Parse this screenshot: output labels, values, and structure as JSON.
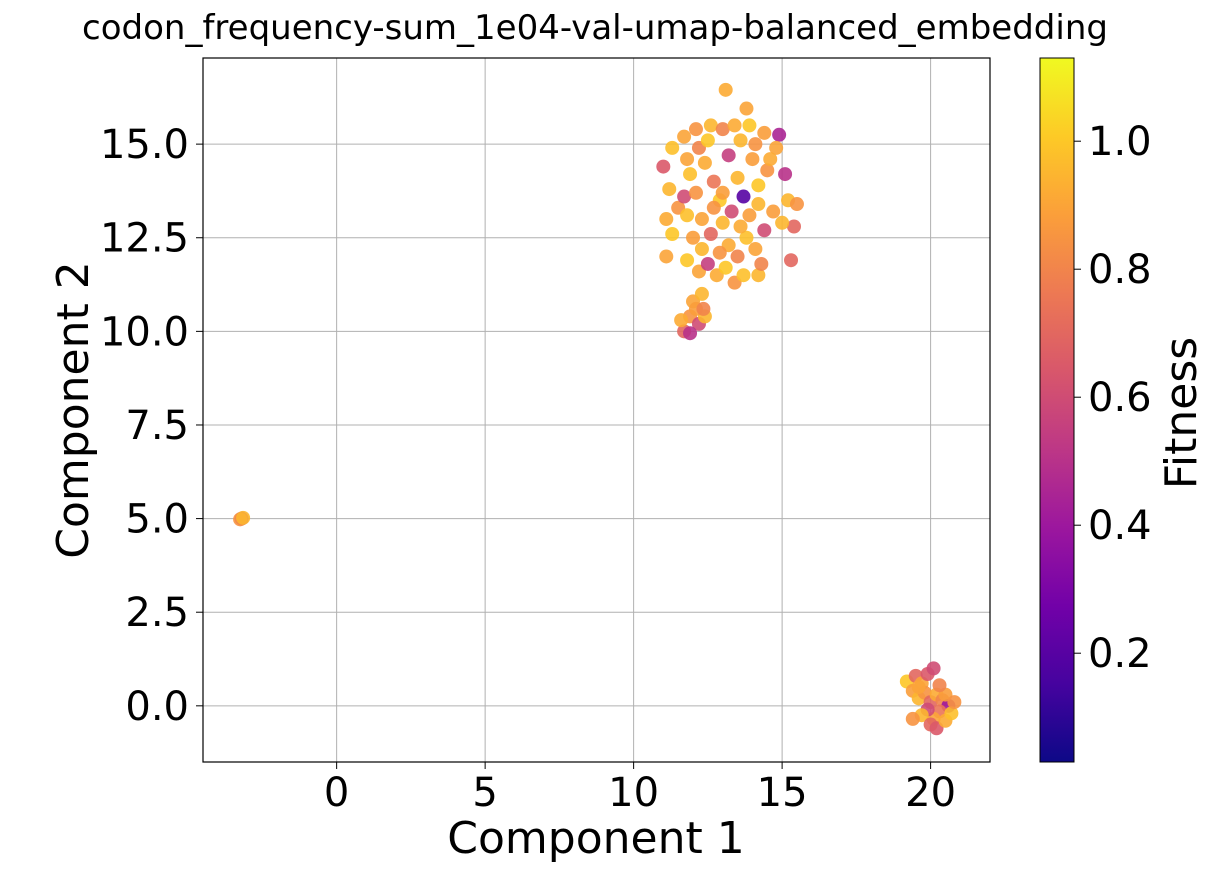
{
  "chart_data": {
    "type": "scatter",
    "title": "codon_frequency-sum_1e04-val-umap-balanced_embedding",
    "xlabel": "Component 1",
    "ylabel": "Component 2",
    "xlim": [
      -4.5,
      22.0
    ],
    "ylim": [
      -1.5,
      17.3
    ],
    "xticks": [
      0,
      5,
      10,
      15,
      20
    ],
    "xtick_labels": [
      "0",
      "5",
      "10",
      "15",
      "20"
    ],
    "yticks": [
      0.0,
      2.5,
      5.0,
      7.5,
      10.0,
      12.5,
      15.0
    ],
    "ytick_labels": [
      "0.0",
      "2.5",
      "5.0",
      "7.5",
      "10.0",
      "12.5",
      "15.0"
    ],
    "grid": true,
    "colorbar": {
      "label": "Fitness",
      "colormap": "plasma",
      "range": [
        0.03,
        1.13
      ],
      "ticks": [
        0.2,
        0.4,
        0.6,
        0.8,
        1.0
      ],
      "tick_labels": [
        "0.2",
        "0.4",
        "0.6",
        "0.8",
        "1.0"
      ]
    },
    "colormap_stops": [
      "#0d0887",
      "#46039f",
      "#7201a8",
      "#9c179e",
      "#bd3786",
      "#d8576b",
      "#ed7953",
      "#fb9f3a",
      "#fdca26",
      "#f0f921"
    ],
    "series": [
      {
        "points": [
          [
            -3.2,
            5.0,
            0.5
          ],
          [
            -3.25,
            4.98,
            0.85
          ],
          [
            -3.15,
            5.02,
            0.95
          ],
          [
            11.0,
            14.4,
            0.65
          ],
          [
            11.3,
            14.9,
            0.98
          ],
          [
            11.7,
            15.2,
            0.9
          ],
          [
            12.1,
            15.4,
            0.85
          ],
          [
            12.6,
            15.5,
            0.95
          ],
          [
            13.0,
            15.4,
            0.8
          ],
          [
            13.4,
            15.5,
            0.92
          ],
          [
            13.9,
            15.5,
            1.0
          ],
          [
            14.4,
            15.3,
            0.88
          ],
          [
            14.9,
            15.25,
            0.45
          ],
          [
            13.1,
            16.45,
            0.92
          ],
          [
            13.8,
            15.95,
            0.9
          ],
          [
            11.2,
            13.8,
            0.95
          ],
          [
            11.5,
            13.3,
            0.85
          ],
          [
            11.1,
            13.0,
            0.92
          ],
          [
            11.3,
            12.6,
            1.0
          ],
          [
            11.1,
            12.0,
            0.9
          ],
          [
            11.7,
            13.6,
            0.6
          ],
          [
            11.9,
            14.2,
            0.98
          ],
          [
            12.1,
            13.7,
            0.85
          ],
          [
            12.4,
            14.5,
            0.92
          ],
          [
            12.7,
            14.0,
            0.75
          ],
          [
            12.9,
            13.5,
            1.0
          ],
          [
            13.2,
            14.7,
            0.55
          ],
          [
            13.5,
            14.1,
            0.95
          ],
          [
            13.7,
            13.6,
            0.2
          ],
          [
            14.0,
            14.6,
            0.88
          ],
          [
            14.2,
            13.9,
            1.0
          ],
          [
            14.5,
            14.3,
            0.85
          ],
          [
            14.8,
            14.9,
            0.9
          ],
          [
            15.1,
            14.2,
            0.5
          ],
          [
            15.2,
            13.5,
            0.95
          ],
          [
            15.5,
            13.4,
            0.85
          ],
          [
            15.4,
            12.8,
            0.7
          ],
          [
            15.0,
            12.9,
            0.95
          ],
          [
            14.7,
            13.2,
            0.88
          ],
          [
            14.4,
            12.7,
            0.6
          ],
          [
            14.1,
            12.2,
            0.9
          ],
          [
            13.8,
            12.5,
            0.98
          ],
          [
            13.5,
            12.0,
            0.8
          ],
          [
            13.2,
            12.3,
            0.92
          ],
          [
            12.9,
            12.1,
            0.85
          ],
          [
            12.6,
            12.6,
            0.7
          ],
          [
            12.3,
            12.2,
            0.95
          ],
          [
            12.0,
            12.5,
            0.88
          ],
          [
            11.8,
            11.9,
            1.0
          ],
          [
            12.2,
            11.6,
            0.9
          ],
          [
            12.5,
            11.8,
            0.55
          ],
          [
            12.8,
            11.5,
            0.92
          ],
          [
            13.1,
            11.7,
            1.0
          ],
          [
            13.4,
            11.3,
            0.85
          ],
          [
            13.7,
            11.5,
            0.98
          ],
          [
            14.2,
            11.5,
            0.95
          ],
          [
            14.3,
            11.8,
            0.8
          ],
          [
            15.3,
            11.9,
            0.7
          ],
          [
            12.3,
            13.0,
            0.9
          ],
          [
            12.7,
            13.3,
            0.85
          ],
          [
            13.0,
            12.9,
            0.95
          ],
          [
            13.3,
            13.2,
            0.6
          ],
          [
            13.6,
            12.8,
            0.92
          ],
          [
            13.9,
            13.1,
            0.88
          ],
          [
            14.2,
            13.4,
            0.95
          ],
          [
            11.8,
            14.6,
            0.9
          ],
          [
            12.2,
            14.9,
            0.8
          ],
          [
            12.5,
            15.1,
            1.0
          ],
          [
            13.6,
            15.1,
            0.95
          ],
          [
            14.1,
            15.0,
            0.85
          ],
          [
            14.6,
            14.6,
            0.92
          ],
          [
            13.0,
            13.7,
            0.88
          ],
          [
            11.8,
            13.1,
            0.98
          ],
          [
            12.0,
            10.8,
            0.9
          ],
          [
            12.3,
            11.0,
            0.95
          ],
          [
            11.9,
            10.4,
            0.85
          ],
          [
            12.2,
            10.2,
            0.6
          ],
          [
            11.7,
            10.0,
            0.7
          ],
          [
            11.9,
            9.95,
            0.5
          ],
          [
            12.4,
            10.4,
            0.95
          ],
          [
            12.1,
            10.6,
            0.88
          ],
          [
            11.6,
            10.3,
            0.92
          ],
          [
            12.35,
            10.6,
            0.8
          ],
          [
            19.2,
            0.65,
            1.0
          ],
          [
            19.5,
            0.8,
            0.7
          ],
          [
            19.7,
            0.6,
            0.9
          ],
          [
            19.9,
            0.85,
            0.65
          ],
          [
            20.1,
            1.0,
            0.6
          ],
          [
            19.4,
            0.4,
            0.88
          ],
          [
            19.6,
            0.2,
            0.95
          ],
          [
            19.8,
            0.35,
            0.85
          ],
          [
            20.0,
            0.1,
            0.7
          ],
          [
            20.2,
            0.3,
            0.92
          ],
          [
            20.4,
            0.15,
            0.8
          ],
          [
            20.6,
            0.0,
            0.4
          ],
          [
            20.5,
            0.3,
            0.88
          ],
          [
            20.3,
            -0.15,
            0.75
          ],
          [
            20.1,
            -0.35,
            0.9
          ],
          [
            19.9,
            -0.1,
            0.6
          ],
          [
            19.7,
            -0.25,
            0.95
          ],
          [
            19.4,
            -0.35,
            0.85
          ],
          [
            20.0,
            -0.5,
            0.7
          ],
          [
            20.2,
            -0.6,
            0.65
          ],
          [
            20.5,
            -0.4,
            0.92
          ],
          [
            20.7,
            -0.2,
            0.98
          ],
          [
            20.8,
            0.1,
            0.85
          ],
          [
            19.6,
            0.5,
            0.9
          ],
          [
            20.3,
            0.55,
            0.8
          ]
        ]
      }
    ]
  }
}
